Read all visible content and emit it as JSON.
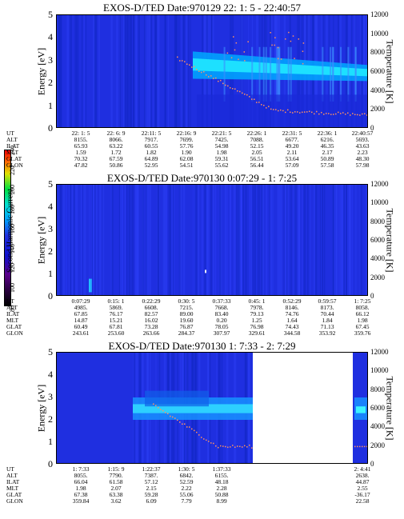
{
  "colorbar": {
    "label": "Second Harmonic Current",
    "ticks": [
      "80",
      "100",
      "120",
      "140",
      "160",
      "180",
      "200",
      "220",
      "240"
    ]
  },
  "chart_data": [
    {
      "type": "heatmap",
      "title": "EXOS-D/TED    Date:970129  22: 1: 5 - 22:40:57",
      "ylabel": "Energy [eV]",
      "ylabel_right": "Temperature [K]",
      "ylim": [
        0,
        5
      ],
      "ylim_right": [
        0,
        12000
      ],
      "yticks": [
        "0",
        "1",
        "2",
        "3",
        "4",
        "5"
      ],
      "yticks_right": [
        "0",
        "2000",
        "4000",
        "6000",
        "8000",
        "10000",
        "12000"
      ],
      "rows": [
        {
          "label": "UT",
          "values": [
            "22: 1: 5",
            "22: 6: 9",
            "22:11: 5",
            "22:16: 9",
            "22:21: 5",
            "22:26: 1",
            "22:31: 5",
            "22:36: 1",
            "22:40:57"
          ]
        },
        {
          "label": "ALT",
          "values": [
            "8155.",
            "8066.",
            "7917.",
            "7699.",
            "7425.",
            "7088.",
            "6677.",
            "6216.",
            "5693."
          ]
        },
        {
          "label": "ILAT",
          "values": [
            "65.93",
            "63.22",
            "60.55",
            "57.76",
            "54.98",
            "52.15",
            "49.20",
            "46.35",
            "43.63"
          ]
        },
        {
          "label": "MLT",
          "values": [
            "1.59",
            "1.72",
            "1.82",
            "1.90",
            "1.98",
            "2.05",
            "2.11",
            "2.17",
            "2.23"
          ]
        },
        {
          "label": "GLAT",
          "values": [
            "70.32",
            "67.59",
            "64.89",
            "62.08",
            "59.31",
            "56.51",
            "53.64",
            "50.89",
            "48.30"
          ]
        },
        {
          "label": "GLON",
          "values": [
            "47.82",
            "50.86",
            "52.95",
            "54.51",
            "55.62",
            "56.44",
            "57.09",
            "57.58",
            "57.98"
          ]
        }
      ]
    },
    {
      "type": "heatmap",
      "title": "EXOS-D/TED    Date:970130   0:07:29 - 1: 7:25",
      "ylabel": "Energy [eV]",
      "ylabel_right": "Temperature [K]",
      "ylim": [
        0,
        5
      ],
      "ylim_right": [
        0,
        12000
      ],
      "yticks": [
        "0",
        "1",
        "2",
        "3",
        "4",
        "5"
      ],
      "yticks_right": [
        "0",
        "2000",
        "4000",
        "6000",
        "8000",
        "10000",
        "12000"
      ],
      "rows": [
        {
          "label": "UT",
          "values": [
            "0:07:29",
            "0:15: 1",
            "0:22:29",
            "0:30: 5",
            "0:37:33",
            "0:45: 1",
            "0:52:29",
            "0:59:57",
            "1: 7:25"
          ]
        },
        {
          "label": "ALT",
          "values": [
            "4985.",
            "5869.",
            "6608.",
            "7215.",
            "7668.",
            "7978.",
            "8146.",
            "8173.",
            "8058."
          ]
        },
        {
          "label": "ILAT",
          "values": [
            "67.85",
            "76.17",
            "82.57",
            "89.00",
            "83.40",
            "79.13",
            "74.76",
            "70.44",
            "66.12"
          ]
        },
        {
          "label": "MLT",
          "values": [
            "14.87",
            "15.21",
            "16.02",
            "19.60",
            "0.20",
            "1.25",
            "1.64",
            "1.84",
            "1.98"
          ]
        },
        {
          "label": "GLAT",
          "values": [
            "60.49",
            "67.81",
            "73.28",
            "76.87",
            "78.05",
            "76.98",
            "74.43",
            "71.13",
            "67.45"
          ]
        },
        {
          "label": "GLON",
          "values": [
            "243.61",
            "253.60",
            "263.66",
            "284.37",
            "307.97",
            "329.61",
            "344.58",
            "353.92",
            "359.76"
          ]
        }
      ]
    },
    {
      "type": "heatmap",
      "title": "EXOS-D/TED    Date:970130   1: 7:33 - 2: 7:29",
      "ylabel": "Energy [eV]",
      "ylabel_right": "Temperature [K]",
      "ylim": [
        0,
        5
      ],
      "ylim_right": [
        0,
        12000
      ],
      "yticks": [
        "0",
        "1",
        "2",
        "3",
        "4",
        "5"
      ],
      "yticks_right": [
        "0",
        "2000",
        "4000",
        "6000",
        "8000",
        "10000",
        "12000"
      ],
      "rows": [
        {
          "label": "UT",
          "values": [
            "1: 7:33",
            "1:15: 9",
            "1:22:37",
            "1:30: 5",
            "1:37:33",
            "",
            "",
            "",
            "2: 4:41"
          ]
        },
        {
          "label": "ALT",
          "values": [
            "8055.",
            "7790.",
            "7387.",
            "6842.",
            "6155.",
            "",
            "",
            "",
            "2638."
          ]
        },
        {
          "label": "ILAT",
          "values": [
            "66.04",
            "61.58",
            "57.12",
            "52.59",
            "48.18",
            "",
            "",
            "",
            "44.87"
          ]
        },
        {
          "label": "MLT",
          "values": [
            "1.98",
            "2.07",
            "2.15",
            "2.22",
            "2.28",
            "",
            "",
            "",
            "2.55"
          ]
        },
        {
          "label": "GLAT",
          "values": [
            "67.38",
            "63.38",
            "59.28",
            "55.06",
            "50.88",
            "",
            "",
            "",
            "-36.17"
          ]
        },
        {
          "label": "GLON",
          "values": [
            "359.84",
            "3.62",
            "6.09",
            "7.79",
            "8.99",
            "",
            "",
            "",
            "22.58"
          ]
        }
      ]
    }
  ]
}
